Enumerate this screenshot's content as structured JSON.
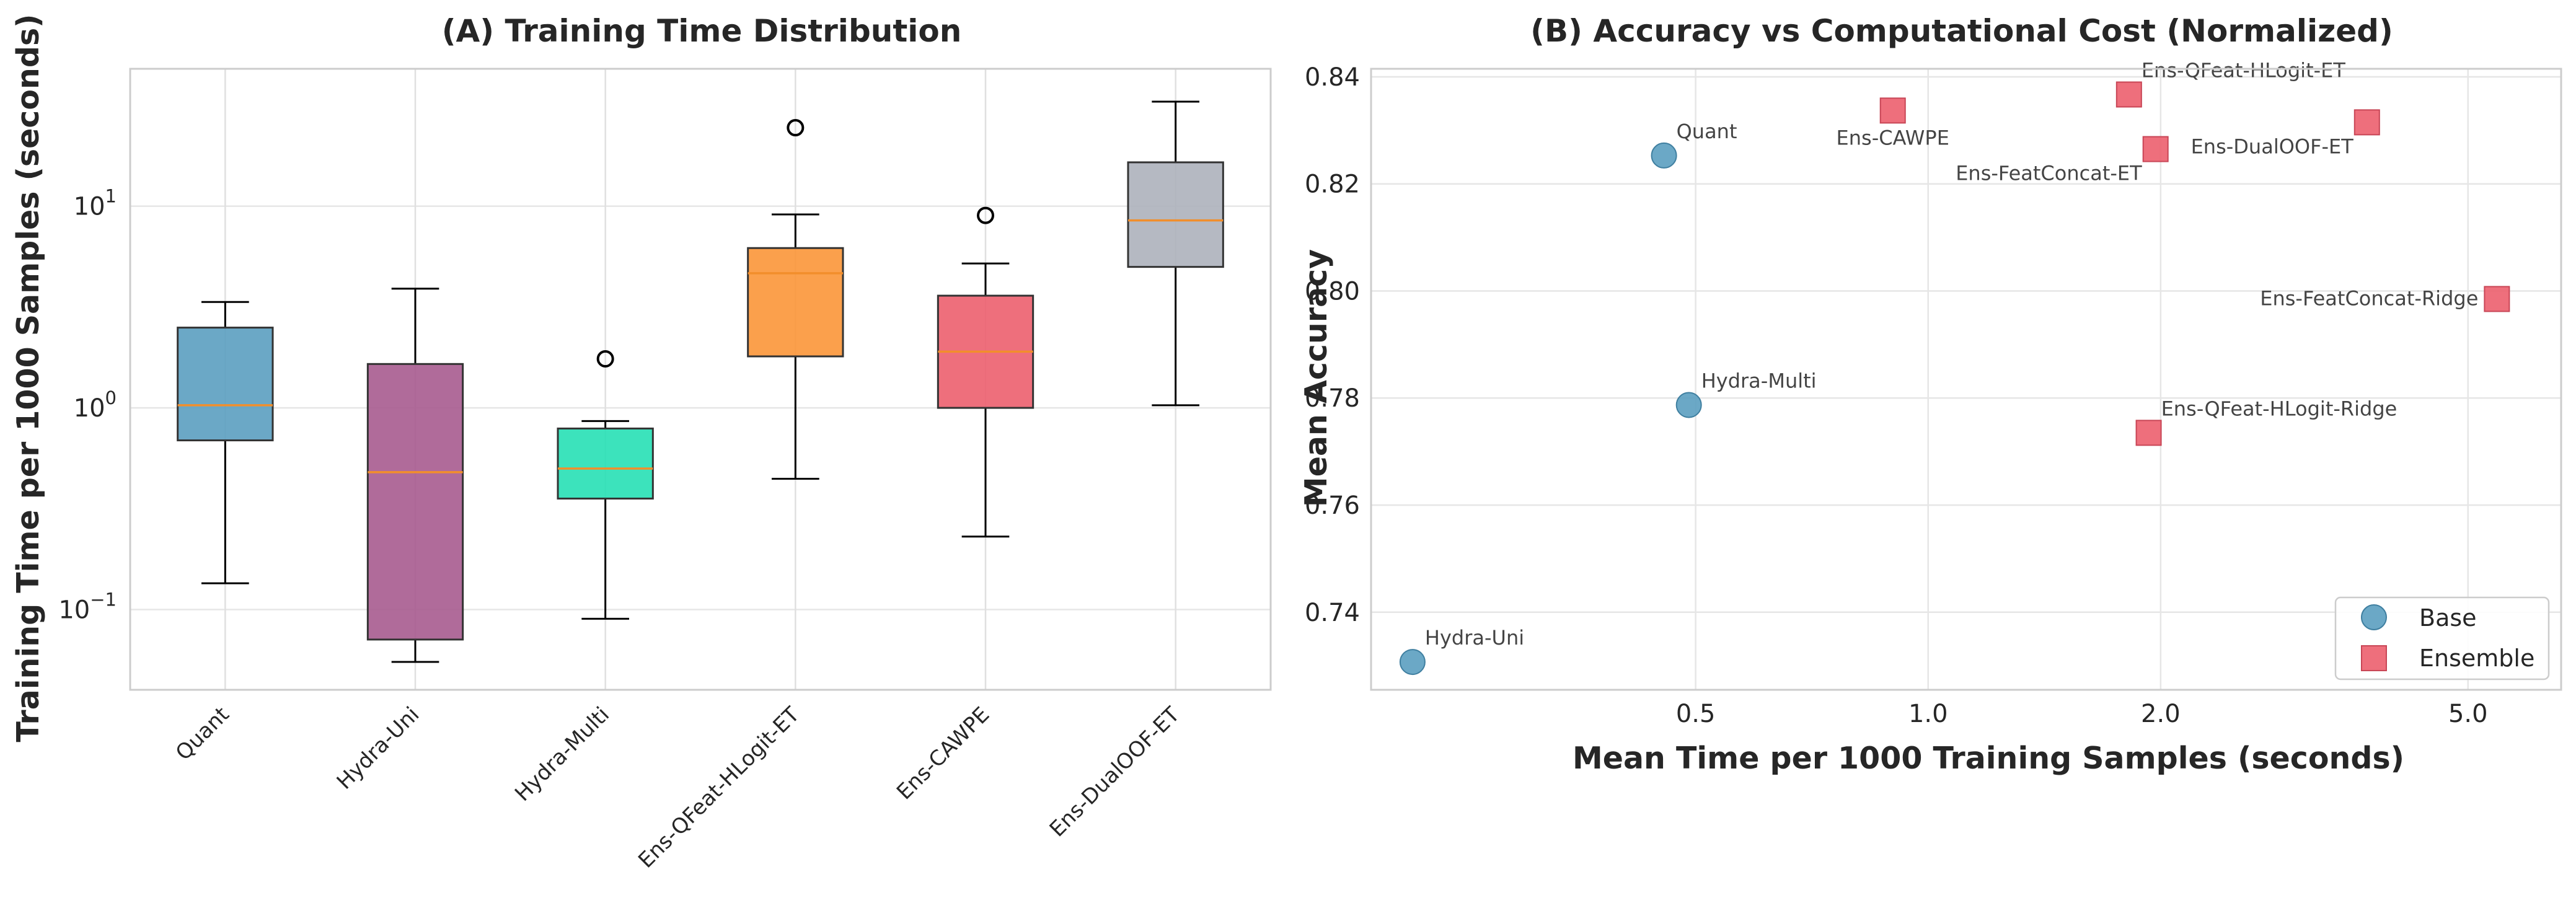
{
  "chart_data": [
    {
      "type": "box",
      "title": "(A) Training Time Distribution",
      "xlabel": "",
      "ylabel": "Training Time per 1000 Samples (seconds)",
      "yscale": "log",
      "ylim": [
        0.04,
        48
      ],
      "yticks": [
        {
          "value": 0.1,
          "base": "10",
          "exp": "−1"
        },
        {
          "value": 1,
          "base": "10",
          "exp": "0"
        },
        {
          "value": 10,
          "base": "10",
          "exp": "1"
        }
      ],
      "grid": true,
      "categories": [
        "Quant",
        "Hydra-Uni",
        "Hydra-Multi",
        "Ens-QFeat-HLogit-ET",
        "Ens-CAWPE",
        "Ens-DualOOF-ET"
      ],
      "boxes": [
        {
          "name": "Quant",
          "whislo": 0.135,
          "q1": 0.69,
          "med": 1.03,
          "q3": 2.5,
          "whishi": 3.35,
          "fliers": [],
          "color": "#5b9fc0"
        },
        {
          "name": "Hydra-Uni",
          "whislo": 0.055,
          "q1": 0.071,
          "med": 0.48,
          "q3": 1.65,
          "whishi": 3.9,
          "fliers": [],
          "color": "#a75b8f"
        },
        {
          "name": "Hydra-Multi",
          "whislo": 0.09,
          "q1": 0.355,
          "med": 0.5,
          "q3": 0.79,
          "whishi": 0.86,
          "fliers": [
            1.75
          ],
          "color": "#27e0b5"
        },
        {
          "name": "Ens-QFeat-HLogit-ET",
          "whislo": 0.445,
          "q1": 1.8,
          "med": 4.65,
          "q3": 6.2,
          "whishi": 9.1,
          "fliers": [
            24.5
          ],
          "color": "#fb9639"
        },
        {
          "name": "Ens-CAWPE",
          "whislo": 0.23,
          "q1": 1.0,
          "med": 1.9,
          "q3": 3.6,
          "whishi": 5.2,
          "fliers": [
            9.0
          ],
          "color": "#ec5f6e"
        },
        {
          "name": "Ens-DualOOF-ET",
          "whislo": 1.03,
          "q1": 5.0,
          "med": 8.5,
          "q3": 16.5,
          "whishi": 33.0,
          "fliers": [],
          "color": "#adb1bb"
        }
      ],
      "median_color": "#f28e2b"
    },
    {
      "type": "scatter",
      "title": "(B) Accuracy vs Computational Cost (Normalized)",
      "xlabel": "Mean Time per 1000 Training Samples (seconds)",
      "ylabel": "Mean Accuracy",
      "xscale": "log",
      "xlim": [
        0.19,
        6.6
      ],
      "ylim": [
        0.7255,
        0.8415
      ],
      "xticks": [
        {
          "value": 0.5,
          "label": "0.5"
        },
        {
          "value": 1.0,
          "label": "1.0"
        },
        {
          "value": 2.0,
          "label": "2.0"
        },
        {
          "value": 5.0,
          "label": "5.0"
        }
      ],
      "yticks": [
        {
          "value": 0.74,
          "label": "0.74"
        },
        {
          "value": 0.76,
          "label": "0.76"
        },
        {
          "value": 0.78,
          "label": "0.78"
        },
        {
          "value": 0.8,
          "label": "0.80"
        },
        {
          "value": 0.82,
          "label": "0.82"
        },
        {
          "value": 0.84,
          "label": "0.84"
        }
      ],
      "grid": true,
      "legend_position": "bottom-right",
      "series": [
        {
          "name": "Base",
          "marker": "circle",
          "color": "#5b9fc0",
          "points": [
            {
              "label": "Quant",
              "x": 0.455,
              "y": 0.8253,
              "anchor": "start"
            },
            {
              "label": "Hydra-Multi",
              "x": 0.49,
              "y": 0.7787,
              "anchor": "start"
            },
            {
              "label": "Hydra-Uni",
              "x": 0.215,
              "y": 0.7307,
              "anchor": "start"
            }
          ]
        },
        {
          "name": "Ensemble",
          "marker": "square",
          "color": "#ec5f6e",
          "points": [
            {
              "label": "Ens-CAWPE",
              "x": 0.9,
              "y": 0.8337,
              "anchor": "middle-below"
            },
            {
              "label": "Ens-QFeat-HLogit-ET",
              "x": 1.82,
              "y": 0.8367,
              "anchor": "start"
            },
            {
              "label": "Ens-FeatConcat-ET",
              "x": 1.97,
              "y": 0.8265,
              "anchor": "end-below"
            },
            {
              "label": "Ens-DualOOF-ET",
              "x": 3.7,
              "y": 0.8315,
              "anchor": "end-below"
            },
            {
              "label": "Ens-FeatConcat-Ridge",
              "x": 5.45,
              "y": 0.7985,
              "anchor": "end"
            },
            {
              "label": "Ens-QFeat-HLogit-Ridge",
              "x": 1.93,
              "y": 0.7735,
              "anchor": "start"
            }
          ]
        }
      ]
    }
  ]
}
